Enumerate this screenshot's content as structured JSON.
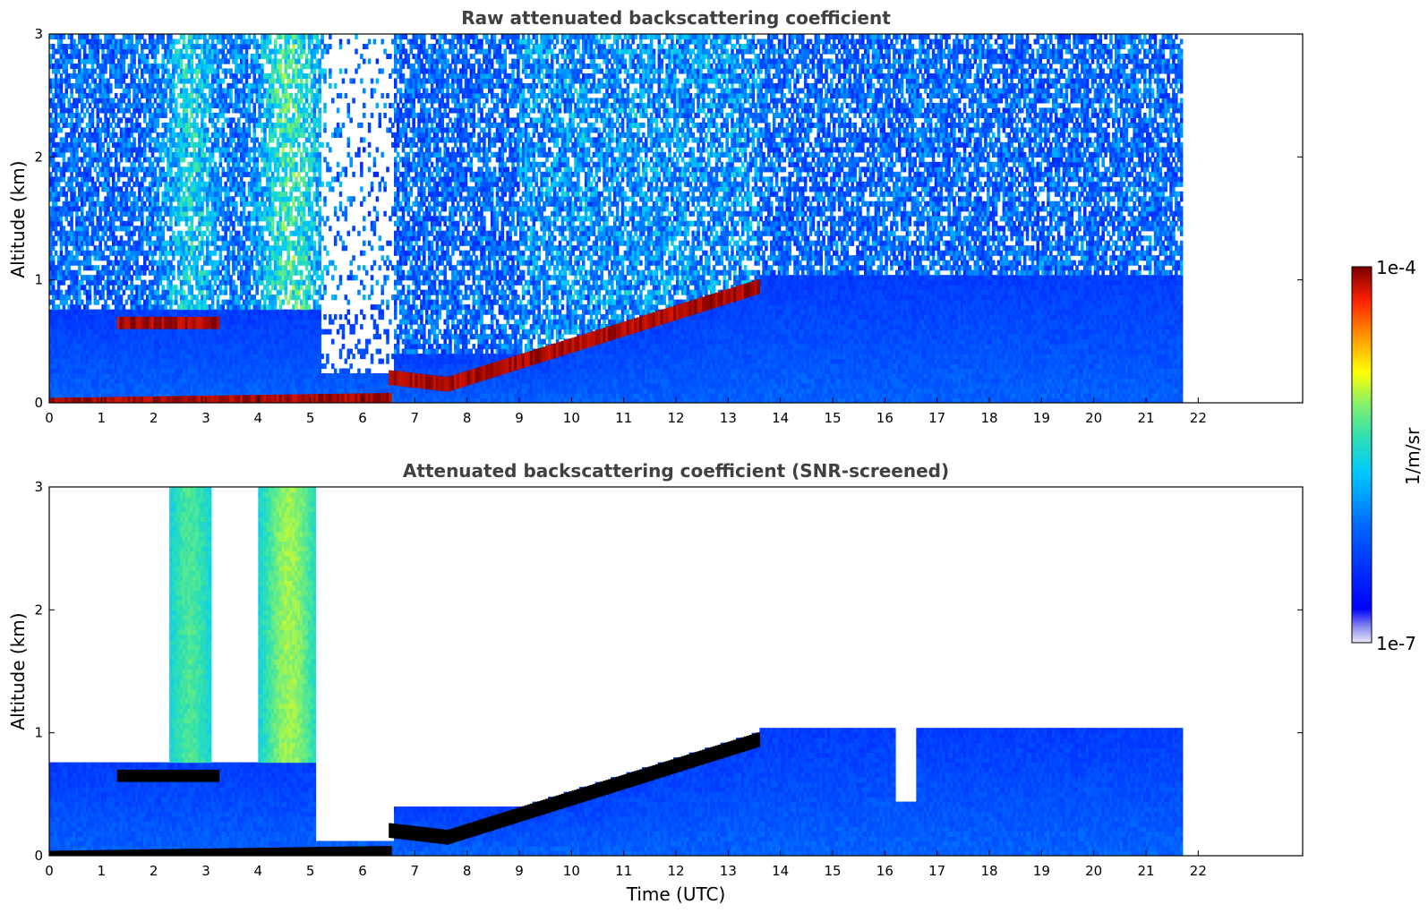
{
  "chart_data": [
    {
      "type": "heatmap",
      "title": "Raw attenuated backscattering coefficient",
      "xlabel": "",
      "ylabel": "Altitude (km)",
      "xlim": [
        0,
        24
      ],
      "ylim": [
        0,
        3
      ],
      "x_ticks": [
        "0",
        "1",
        "2",
        "3",
        "4",
        "5",
        "6",
        "7",
        "8",
        "9",
        "10",
        "11",
        "12",
        "13",
        "14",
        "15",
        "16",
        "17",
        "18",
        "19",
        "20",
        "21",
        "22"
      ],
      "y_ticks": [
        "0",
        "1",
        "2",
        "3"
      ],
      "data_time_range": [
        0,
        21.7
      ],
      "layers": [
        {
          "time": [
            1.3,
            3.2
          ],
          "altitude": [
            0.6,
            0.7
          ],
          "level": "1e-4"
        },
        {
          "time": [
            0,
            6.5
          ],
          "altitude": [
            0.0,
            0.08
          ],
          "level": "1e-4"
        },
        {
          "time": [
            6.5,
            13.6
          ],
          "altitude": [
            0.15,
            0.95
          ],
          "level": "1e-4"
        }
      ]
    },
    {
      "type": "heatmap",
      "title": "Attenuated backscattering coefficient (SNR-screened)",
      "xlabel": "Time (UTC)",
      "ylabel": "Altitude (km)",
      "xlim": [
        0,
        24
      ],
      "ylim": [
        0,
        3
      ],
      "x_ticks": [
        "0",
        "1",
        "2",
        "3",
        "4",
        "5",
        "6",
        "7",
        "8",
        "9",
        "10",
        "11",
        "12",
        "13",
        "14",
        "15",
        "16",
        "17",
        "18",
        "19",
        "20",
        "21",
        "22"
      ],
      "y_ticks": [
        "0",
        "1",
        "2",
        "3"
      ],
      "data_time_range": [
        0,
        21.7
      ],
      "layers": [
        {
          "time": [
            1.3,
            3.2
          ],
          "altitude": [
            0.6,
            0.7
          ],
          "level": "1e-4"
        },
        {
          "time": [
            0,
            6.5
          ],
          "altitude": [
            0.0,
            0.08
          ],
          "level": "1e-4"
        },
        {
          "time": [
            6.5,
            13.6
          ],
          "altitude": [
            0.15,
            0.95
          ],
          "level": "1e-4"
        }
      ]
    }
  ],
  "colorbar": {
    "label": "1/m/sr",
    "min_label": "1e-7",
    "max_label": "1e-4",
    "colormap": "jet"
  }
}
